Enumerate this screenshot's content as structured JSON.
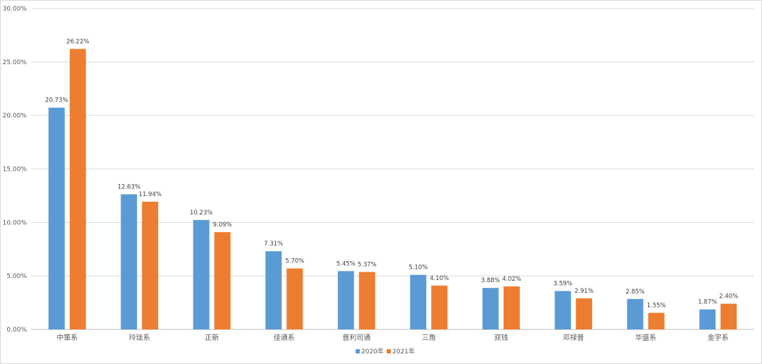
{
  "chart_data": {
    "type": "bar",
    "categories": [
      "中策系",
      "玲珑系",
      "正新",
      "佳通系",
      "普利司通",
      "三角",
      "双钱",
      "邓禄普",
      "华盛系",
      "金宇系"
    ],
    "series": [
      {
        "name": "2020年",
        "color": "#5b9bd5",
        "values": [
          20.73,
          12.63,
          10.23,
          7.31,
          5.45,
          5.1,
          3.88,
          3.59,
          2.85,
          1.87
        ],
        "labels": [
          "20.73%",
          "12.63%",
          "10.23%",
          "7.31%",
          "5.45%",
          "5.10%",
          "3.88%",
          "3.59%",
          "2.85%",
          "1.87%"
        ]
      },
      {
        "name": "2021年",
        "color": "#ed7d31",
        "values": [
          26.22,
          11.94,
          9.09,
          5.7,
          5.37,
          4.1,
          4.02,
          2.91,
          1.55,
          2.4
        ],
        "labels": [
          "26.22%",
          "11.94%",
          "9.09%",
          "5.70%",
          "5.37%",
          "4.10%",
          "4.02%",
          "2.91%",
          "1.55%",
          "2.40%"
        ]
      }
    ],
    "ylim": [
      0,
      30
    ],
    "yticks": [
      0,
      5,
      10,
      15,
      20,
      25,
      30
    ],
    "ytick_labels": [
      "0.00%",
      "5.00%",
      "10.00%",
      "15.00%",
      "20.00%",
      "25.00%",
      "30.00%"
    ],
    "grid": true,
    "legend": "bottom-center",
    "gridline_color": "#d9d9d9",
    "axis_color": "#bfbfbf"
  }
}
